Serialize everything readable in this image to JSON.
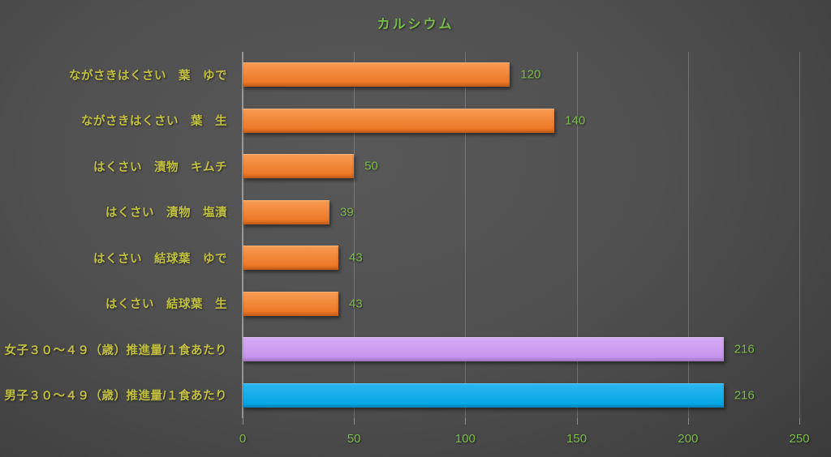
{
  "chart_data": {
    "type": "bar",
    "orientation": "horizontal",
    "title": "カルシウム",
    "categories": [
      "ながさきはくさい　葉　ゆで",
      "ながさきはくさい　葉　生",
      "はくさい　漬物　キムチ",
      "はくさい　漬物　塩漬",
      "はくさい　結球葉　ゆで",
      "はくさい　結球葉　生",
      "女子３０～４９（歳）推進量/１食あたり",
      "男子３０～４９（歳）推進量/１食あたり"
    ],
    "values": [
      120,
      140,
      50,
      39,
      43,
      43,
      216,
      216
    ],
    "xlabel": "",
    "ylabel": "",
    "xlim": [
      0,
      250
    ],
    "x_ticks": [
      0,
      50,
      100,
      150,
      200,
      250
    ],
    "grid": true,
    "legend": "none",
    "bar_styles": [
      {
        "top": "#F89C54",
        "bottom": "#EB701C"
      },
      {
        "top": "#F89C54",
        "bottom": "#EB701C"
      },
      {
        "top": "#F89C54",
        "bottom": "#EB701C"
      },
      {
        "top": "#F89C54",
        "bottom": "#EB701C"
      },
      {
        "top": "#F89C54",
        "bottom": "#EB701C"
      },
      {
        "top": "#F89C54",
        "bottom": "#EB701C"
      },
      {
        "top": "#D5ABF5",
        "bottom": "#C38FEC"
      },
      {
        "top": "#2BB7F0",
        "bottom": "#00A4E4"
      }
    ],
    "colors": {
      "title": "#7CBB4C",
      "value_labels": "#7CBB4C",
      "tick_labels": "#7CBB4C",
      "category_labels": "#C2C041",
      "background": "#4B4B4B"
    }
  }
}
